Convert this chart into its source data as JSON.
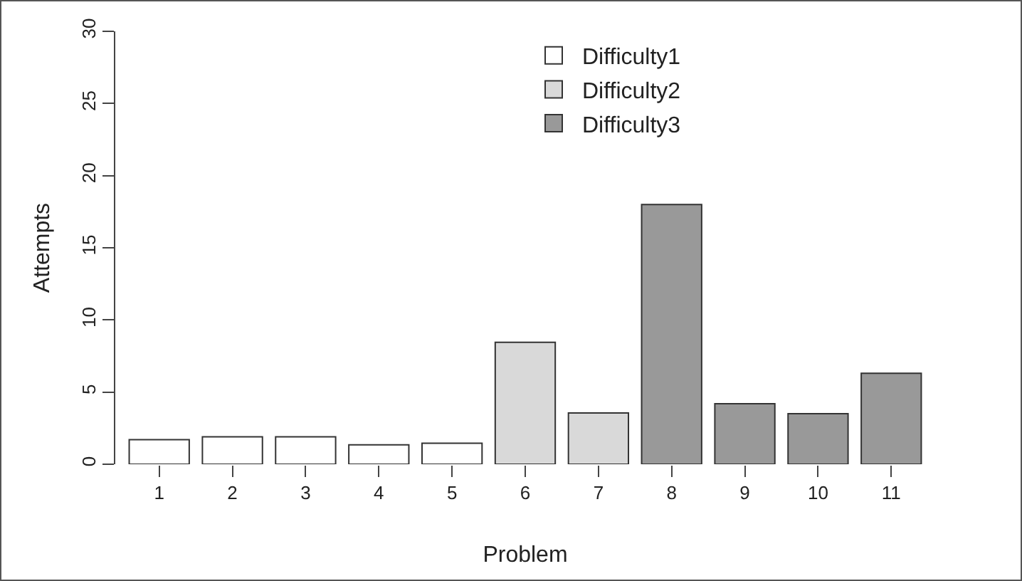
{
  "chart_data": {
    "type": "bar",
    "xlabel": "Problem",
    "ylabel": "Attempts",
    "categories": [
      "1",
      "2",
      "3",
      "4",
      "5",
      "6",
      "7",
      "8",
      "9",
      "10",
      "11"
    ],
    "series": [
      {
        "name": "Difficulty1",
        "color": "#ffffff",
        "values": [
          1.7,
          1.9,
          1.9,
          1.35,
          1.45,
          null,
          null,
          null,
          null,
          null,
          null
        ]
      },
      {
        "name": "Difficulty2",
        "color": "#d9d9d9",
        "values": [
          null,
          null,
          null,
          null,
          null,
          8.45,
          3.55,
          null,
          null,
          null,
          null
        ]
      },
      {
        "name": "Difficulty3",
        "color": "#999999",
        "values": [
          null,
          null,
          null,
          null,
          null,
          null,
          null,
          18,
          4.2,
          3.5,
          6.3
        ]
      }
    ],
    "ylim": [
      0,
      30
    ],
    "yticks": [
      0,
      5,
      10,
      15,
      20,
      25,
      30
    ],
    "grid": false,
    "legend": "top right"
  }
}
